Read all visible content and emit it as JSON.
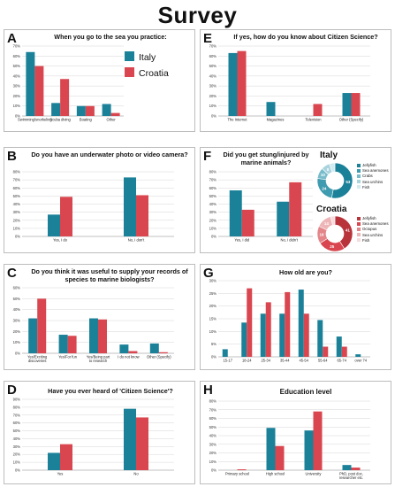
{
  "title": "Survey",
  "colors": {
    "italy": "#1b8199",
    "croatia": "#d9464f",
    "grid": "#d6d6d6"
  },
  "legend": {
    "italy": "Italy",
    "croatia": "Croatia"
  },
  "donuts": {
    "italy": {
      "title": "Italy",
      "labels": [
        "Jellyfish",
        "Sea anemones",
        "Crabs",
        "Sea urchins",
        "Fish"
      ],
      "colors": [
        "#1b8199",
        "#3e9bb0",
        "#78bccb",
        "#a9d4de",
        "#d3ebf0"
      ],
      "values": [
        53,
        24,
        10,
        8,
        5
      ],
      "value_labels": [
        "53",
        "24",
        "10",
        "8",
        ""
      ]
    },
    "croatia": {
      "title": "Croatia",
      "labels": [
        "Jellyfish",
        "Sea anemones",
        "Octopus",
        "Sea urchins",
        "Fish"
      ],
      "colors": [
        "#b9333b",
        "#d9464f",
        "#e38589",
        "#eeb5b7",
        "#f7dcdd"
      ],
      "values": [
        41,
        25,
        16,
        14,
        4
      ],
      "value_labels": [
        "41",
        "25",
        "16",
        "14",
        ""
      ]
    }
  },
  "chart_data": [
    {
      "id": "A",
      "type": "bar",
      "title": "When you go to the sea you practice:",
      "categories": [
        "Swimming/snorkeling",
        "Scuba diving",
        "Boating",
        "Other"
      ],
      "series": [
        {
          "name": "Italy",
          "values": [
            64,
            13,
            10,
            12
          ]
        },
        {
          "name": "Croatia",
          "values": [
            50,
            37,
            10,
            3
          ]
        }
      ],
      "ylim": [
        0,
        70
      ],
      "yticks": [
        0,
        10,
        20,
        30,
        40,
        50,
        60,
        70
      ],
      "ytick_labels": [
        "0%",
        "10%",
        "20%",
        "30%",
        "40%",
        "50%",
        "60%",
        "70%"
      ]
    },
    {
      "id": "B",
      "type": "bar",
      "title": "Do you have an underwater photo or video camera?",
      "categories": [
        "Yes, I do",
        "No, I don't"
      ],
      "series": [
        {
          "name": "Italy",
          "values": [
            27,
            73
          ]
        },
        {
          "name": "Croatia",
          "values": [
            49,
            51
          ]
        }
      ],
      "ylim": [
        0,
        80
      ],
      "yticks": [
        0,
        10,
        20,
        30,
        40,
        50,
        60,
        70,
        80
      ],
      "ytick_labels": [
        "0%",
        "10%",
        "20%",
        "30%",
        "40%",
        "50%",
        "60%",
        "70%",
        "80%"
      ]
    },
    {
      "id": "C",
      "type": "bar",
      "title": "Do you think it was useful to supply your records of species to marine biologists?",
      "categories": [
        "Yes/Exciting discoveries",
        "Yes/For fun",
        "Yes/Being part to research",
        "I do not know",
        "Other (Specify)"
      ],
      "series": [
        {
          "name": "Italy",
          "values": [
            32,
            17,
            32,
            8,
            9
          ]
        },
        {
          "name": "Croatia",
          "values": [
            50,
            16,
            31,
            2,
            1
          ]
        }
      ],
      "ylim": [
        0,
        60
      ],
      "yticks": [
        0,
        10,
        20,
        30,
        40,
        50,
        60
      ],
      "ytick_labels": [
        "0%",
        "10%",
        "20%",
        "30%",
        "40%",
        "50%",
        "60%"
      ]
    },
    {
      "id": "D",
      "type": "bar",
      "title": "Have you ever heard of 'Citizen Science'?",
      "categories": [
        "Yes",
        "No"
      ],
      "series": [
        {
          "name": "Italy",
          "values": [
            22,
            78
          ]
        },
        {
          "name": "Croatia",
          "values": [
            33,
            67
          ]
        }
      ],
      "ylim": [
        0,
        90
      ],
      "yticks": [
        0,
        10,
        20,
        30,
        40,
        50,
        60,
        70,
        80,
        90
      ],
      "ytick_labels": [
        "0%",
        "10%",
        "20%",
        "30%",
        "40%",
        "50%",
        "60%",
        "70%",
        "80%",
        "90%"
      ]
    },
    {
      "id": "E",
      "type": "bar",
      "title": "If yes, how do you know about Citizen Science?",
      "categories": [
        "The Internet",
        "Magazines",
        "Television",
        "Other (Specify)"
      ],
      "series": [
        {
          "name": "Italy",
          "values": [
            63,
            14,
            0,
            23
          ]
        },
        {
          "name": "Croatia",
          "values": [
            65,
            0,
            12,
            23
          ]
        }
      ],
      "ylim": [
        0,
        70
      ],
      "yticks": [
        0,
        10,
        20,
        30,
        40,
        50,
        60,
        70
      ],
      "ytick_labels": [
        "0%",
        "10%",
        "20%",
        "30%",
        "40%",
        "50%",
        "60%",
        "70%"
      ]
    },
    {
      "id": "F",
      "type": "bar",
      "title": "Did you get stung/injured by marine animals?",
      "categories": [
        "Yes, I did",
        "No, I didn't"
      ],
      "series": [
        {
          "name": "Italy",
          "values": [
            57,
            43
          ]
        },
        {
          "name": "Croatia",
          "values": [
            33,
            67
          ]
        }
      ],
      "ylim": [
        0,
        80
      ],
      "yticks": [
        0,
        10,
        20,
        30,
        40,
        50,
        60,
        70,
        80
      ],
      "ytick_labels": [
        "0%",
        "10%",
        "20%",
        "30%",
        "40%",
        "50%",
        "60%",
        "70%",
        "80%"
      ]
    },
    {
      "id": "G",
      "type": "bar",
      "title": "How old are you?",
      "categories": [
        "15-17",
        "18-24",
        "25-34",
        "35-44",
        "45-54",
        "55-64",
        "65-74",
        "over 74"
      ],
      "series": [
        {
          "name": "Italy",
          "values": [
            3,
            13.5,
            17,
            17,
            26.5,
            14.5,
            8,
            1
          ]
        },
        {
          "name": "Croatia",
          "values": [
            0,
            27,
            21.5,
            25.5,
            17,
            4,
            4,
            0
          ]
        }
      ],
      "ylim": [
        0,
        30
      ],
      "yticks": [
        0,
        5,
        10,
        15,
        20,
        25,
        30
      ],
      "ytick_labels": [
        "0%",
        "5%",
        "10%",
        "15%",
        "20%",
        "25%",
        "30%"
      ]
    },
    {
      "id": "H",
      "type": "bar",
      "title": "Education level",
      "categories": [
        "Primary school",
        "High school",
        "University",
        "PhD, post doc, researcher etc."
      ],
      "series": [
        {
          "name": "Italy",
          "values": [
            0,
            49,
            46,
            6
          ]
        },
        {
          "name": "Croatia",
          "values": [
            1,
            28,
            68,
            3
          ]
        }
      ],
      "ylim": [
        0,
        80
      ],
      "yticks": [
        0,
        10,
        20,
        30,
        40,
        50,
        60,
        70,
        80
      ],
      "ytick_labels": [
        "0%",
        "10%",
        "20%",
        "30%",
        "40%",
        "50%",
        "60%",
        "70%",
        "80%"
      ]
    }
  ]
}
